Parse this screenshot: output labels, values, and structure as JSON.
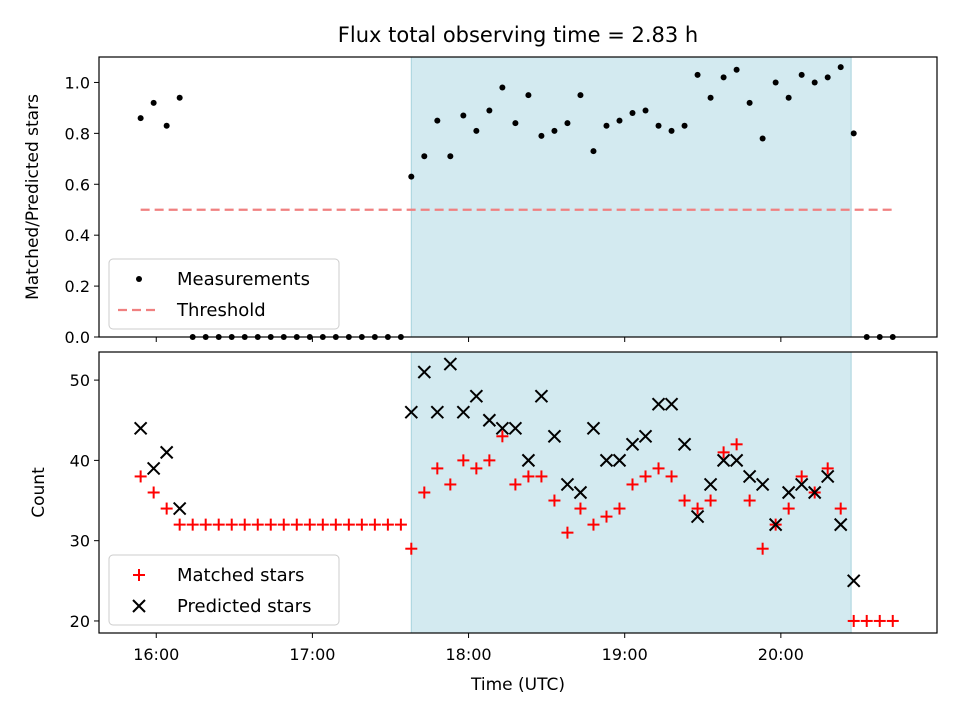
{
  "chart_data": [
    {
      "type": "scatter",
      "title": "Flux total observing time = 2.83 h",
      "xlabel": "",
      "ylabel": "Matched/Predicted stars",
      "xlim": [
        "15:38",
        "21:00"
      ],
      "ylim": [
        0,
        1.1
      ],
      "yticks": [
        0.0,
        0.2,
        0.4,
        0.6,
        0.8,
        1.0
      ],
      "ytick_labels": [
        "0.0",
        "0.2",
        "0.4",
        "0.6",
        "0.8",
        "1.0"
      ],
      "x_tick_labels_visible": false,
      "shaded_interval": {
        "start": "17:38",
        "end": "20:27",
        "color": "#d3eaf0"
      },
      "legend": {
        "position": "lower-left",
        "entries": [
          "Measurements",
          "Threshold"
        ]
      },
      "series": [
        {
          "name": "Measurements",
          "marker": "dot",
          "color": "#000000",
          "x": [
            "15:54",
            "15:59",
            "16:04",
            "16:09",
            "16:14",
            "16:19",
            "16:24",
            "16:29",
            "16:34",
            "16:39",
            "16:44",
            "16:49",
            "16:54",
            "16:59",
            "17:04",
            "17:09",
            "17:14",
            "17:19",
            "17:24",
            "17:29",
            "17:34",
            "17:38",
            "17:43",
            "17:48",
            "17:53",
            "17:58",
            "18:03",
            "18:08",
            "18:13",
            "18:18",
            "18:23",
            "18:28",
            "18:33",
            "18:38",
            "18:43",
            "18:48",
            "18:53",
            "18:58",
            "19:03",
            "19:08",
            "19:13",
            "19:18",
            "19:23",
            "19:28",
            "19:33",
            "19:38",
            "19:43",
            "19:48",
            "19:53",
            "19:58",
            "20:03",
            "20:08",
            "20:13",
            "20:18",
            "20:23",
            "20:28",
            "20:33",
            "20:38",
            "20:43"
          ],
          "y": [
            0.86,
            0.92,
            0.83,
            0.94,
            0,
            0,
            0,
            0,
            0,
            0,
            0,
            0,
            0,
            0,
            0,
            0,
            0,
            0,
            0,
            0,
            0,
            0.63,
            0.71,
            0.85,
            0.71,
            0.87,
            0.81,
            0.89,
            0.98,
            0.84,
            0.95,
            0.79,
            0.81,
            0.84,
            0.95,
            0.73,
            0.83,
            0.85,
            0.88,
            0.89,
            0.83,
            0.81,
            0.83,
            1.03,
            0.94,
            1.02,
            1.05,
            0.92,
            0.78,
            1.0,
            0.94,
            1.03,
            1.0,
            1.02,
            1.06,
            0.8,
            0,
            0,
            0
          ]
        },
        {
          "name": "Threshold",
          "style": "dashed",
          "color": "#f08080",
          "x": [
            "15:54",
            "20:43"
          ],
          "y": [
            0.5,
            0.5
          ]
        }
      ]
    },
    {
      "type": "scatter",
      "title": "",
      "xlabel": "Time (UTC)",
      "ylabel": "Count",
      "xlim": [
        "15:38",
        "21:00"
      ],
      "ylim": [
        18.5,
        53.5
      ],
      "xticks": [
        "16:00",
        "17:00",
        "18:00",
        "19:00",
        "20:00"
      ],
      "yticks": [
        20,
        30,
        40,
        50
      ],
      "ytick_labels": [
        "20",
        "30",
        "40",
        "50"
      ],
      "shaded_interval": {
        "start": "17:38",
        "end": "20:27",
        "color": "#d3eaf0"
      },
      "legend": {
        "position": "lower-left",
        "entries": [
          "Matched stars",
          "Predicted stars"
        ]
      },
      "series": [
        {
          "name": "Matched stars",
          "marker": "plus",
          "color": "#ff0000",
          "x": [
            "15:54",
            "15:59",
            "16:04",
            "16:09",
            "16:14",
            "16:19",
            "16:24",
            "16:29",
            "16:34",
            "16:39",
            "16:44",
            "16:49",
            "16:54",
            "16:59",
            "17:04",
            "17:09",
            "17:14",
            "17:19",
            "17:24",
            "17:29",
            "17:34",
            "17:38",
            "17:43",
            "17:48",
            "17:53",
            "17:58",
            "18:03",
            "18:08",
            "18:13",
            "18:18",
            "18:23",
            "18:28",
            "18:33",
            "18:38",
            "18:43",
            "18:48",
            "18:53",
            "18:58",
            "19:03",
            "19:08",
            "19:13",
            "19:18",
            "19:23",
            "19:28",
            "19:33",
            "19:38",
            "19:43",
            "19:48",
            "19:53",
            "19:58",
            "20:03",
            "20:08",
            "20:13",
            "20:18",
            "20:23",
            "20:28",
            "20:33",
            "20:38",
            "20:43"
          ],
          "y": [
            38,
            36,
            34,
            32,
            32,
            32,
            32,
            32,
            32,
            32,
            32,
            32,
            32,
            32,
            32,
            32,
            32,
            32,
            32,
            32,
            32,
            29,
            36,
            39,
            37,
            40,
            39,
            40,
            43,
            37,
            38,
            38,
            35,
            31,
            34,
            32,
            33,
            34,
            37,
            38,
            39,
            38,
            35,
            34,
            35,
            41,
            42,
            35,
            29,
            32,
            34,
            38,
            36,
            39,
            34,
            20,
            20,
            20,
            20
          ]
        },
        {
          "name": "Predicted stars",
          "marker": "x",
          "color": "#000000",
          "x": [
            "15:54",
            "15:59",
            "16:04",
            "16:09",
            "17:38",
            "17:43",
            "17:48",
            "17:53",
            "17:58",
            "18:03",
            "18:08",
            "18:13",
            "18:18",
            "18:23",
            "18:28",
            "18:33",
            "18:38",
            "18:43",
            "18:48",
            "18:53",
            "18:58",
            "19:03",
            "19:08",
            "19:13",
            "19:18",
            "19:23",
            "19:28",
            "19:33",
            "19:38",
            "19:43",
            "19:48",
            "19:53",
            "19:58",
            "20:03",
            "20:08",
            "20:13",
            "20:18",
            "20:23",
            "20:28"
          ],
          "y": [
            44,
            39,
            41,
            34,
            46,
            51,
            46,
            52,
            46,
            48,
            45,
            44,
            44,
            40,
            48,
            43,
            37,
            36,
            44,
            40,
            40,
            42,
            43,
            47,
            47,
            42,
            33,
            37,
            40,
            40,
            38,
            37,
            32,
            36,
            37,
            36,
            38,
            32,
            25
          ]
        }
      ]
    }
  ]
}
